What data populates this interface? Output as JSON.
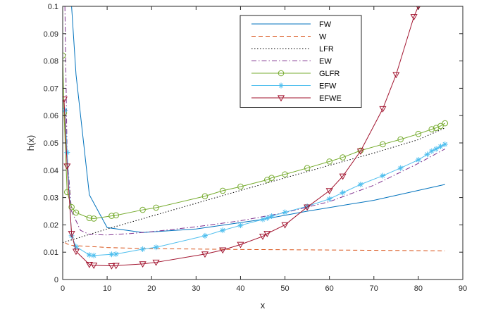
{
  "chart_data": {
    "type": "line",
    "title": "",
    "xlabel": "x",
    "ylabel": "h(x)",
    "xlim": [
      0,
      90
    ],
    "ylim": [
      0,
      0.1
    ],
    "x_ticks": [
      0,
      10,
      20,
      30,
      40,
      50,
      60,
      70,
      80,
      90
    ],
    "y_ticks": [
      0,
      0.01,
      0.02,
      0.03,
      0.04,
      0.05,
      0.06,
      0.07,
      0.08,
      0.09,
      0.1
    ],
    "x_tick_labels": [
      "0",
      "10",
      "20",
      "30",
      "40",
      "50",
      "60",
      "70",
      "80",
      "90"
    ],
    "y_tick_labels": [
      "0",
      "0.01",
      "0.02",
      "0.03",
      "0.04",
      "0.05",
      "0.06",
      "0.07",
      "0.08",
      "0.09",
      "0.1"
    ],
    "legend_position": "top-right",
    "series": [
      {
        "name": "FW",
        "color": "#0072BD",
        "dash": "solid",
        "marker": "none",
        "x": [
          2,
          3,
          6,
          10,
          18,
          30,
          45,
          55,
          70,
          86
        ],
        "y": [
          0.1,
          0.075,
          0.031,
          0.019,
          0.0172,
          0.0185,
          0.022,
          0.025,
          0.029,
          0.0348
        ]
      },
      {
        "name": "W",
        "color": "#D95319",
        "dash": "dashed",
        "marker": "none",
        "x": [
          0.5,
          1,
          2,
          5,
          10,
          20,
          40,
          60,
          86
        ],
        "y": [
          0.0135,
          0.013,
          0.0125,
          0.0122,
          0.0117,
          0.0113,
          0.011,
          0.0108,
          0.0105
        ]
      },
      {
        "name": "LFR",
        "color": "#000000",
        "dash": "dotted",
        "marker": "none",
        "x": [
          0,
          10,
          20,
          30,
          40,
          50,
          60,
          70,
          80,
          86
        ],
        "y": [
          0.0135,
          0.0185,
          0.0232,
          0.0279,
          0.0326,
          0.0372,
          0.0418,
          0.0463,
          0.0512,
          0.0555
        ]
      },
      {
        "name": "EW",
        "color": "#7E2F8E",
        "dash": "dashdot",
        "marker": "none",
        "x": [
          0.5,
          1,
          2,
          4,
          6,
          10,
          15,
          20,
          30,
          40,
          50,
          60,
          70,
          80,
          86
        ],
        "y": [
          0.1,
          0.045,
          0.025,
          0.018,
          0.0165,
          0.0163,
          0.0168,
          0.0175,
          0.0193,
          0.0215,
          0.0245,
          0.0285,
          0.0345,
          0.0425,
          0.0478
        ]
      },
      {
        "name": "GLFR",
        "color": "#77AC30",
        "dash": "solid",
        "marker": "circle",
        "x": [
          0,
          0.3,
          1,
          2,
          3,
          6,
          7,
          11,
          12,
          18,
          21,
          32,
          36,
          40,
          46,
          47,
          50,
          55,
          60,
          63,
          67,
          72,
          76,
          80,
          83,
          84,
          85,
          86
        ],
        "y": [
          0.082,
          0.061,
          0.032,
          0.0265,
          0.0245,
          0.0225,
          0.0223,
          0.0233,
          0.0235,
          0.0255,
          0.0263,
          0.0305,
          0.0325,
          0.034,
          0.0365,
          0.0372,
          0.0385,
          0.0408,
          0.0432,
          0.0447,
          0.0472,
          0.0495,
          0.0513,
          0.0533,
          0.055,
          0.0555,
          0.0562,
          0.0572
        ]
      },
      {
        "name": "EFW",
        "color": "#4DBEEE",
        "dash": "solid",
        "marker": "asterisk",
        "x": [
          0.5,
          1,
          2,
          3,
          6,
          7,
          11,
          12,
          18,
          21,
          32,
          36,
          40,
          45,
          46,
          47,
          50,
          55,
          60,
          63,
          67,
          72,
          76,
          80,
          82,
          83,
          84,
          85,
          86
        ],
        "y": [
          0.062,
          0.0465,
          0.016,
          0.012,
          0.009,
          0.0088,
          0.0092,
          0.0093,
          0.0111,
          0.0118,
          0.016,
          0.018,
          0.0198,
          0.022,
          0.0225,
          0.0232,
          0.0246,
          0.0268,
          0.0295,
          0.0318,
          0.0348,
          0.038,
          0.0408,
          0.0438,
          0.0458,
          0.047,
          0.0478,
          0.0487,
          0.0495
        ]
      },
      {
        "name": "EFWE",
        "color": "#A2142F",
        "dash": "solid",
        "marker": "triangle",
        "x": [
          0.3,
          1,
          2,
          3,
          6,
          7,
          11,
          12,
          18,
          21,
          32,
          36,
          40,
          45,
          46,
          50,
          55,
          60,
          63,
          67,
          72,
          75,
          79,
          80
        ],
        "y": [
          0.066,
          0.0415,
          0.0168,
          0.0103,
          0.0055,
          0.0052,
          0.005,
          0.0051,
          0.0057,
          0.0063,
          0.0093,
          0.0108,
          0.0128,
          0.0158,
          0.0168,
          0.02,
          0.0265,
          0.0325,
          0.0378,
          0.047,
          0.0625,
          0.075,
          0.0962,
          0.1
        ]
      }
    ]
  }
}
